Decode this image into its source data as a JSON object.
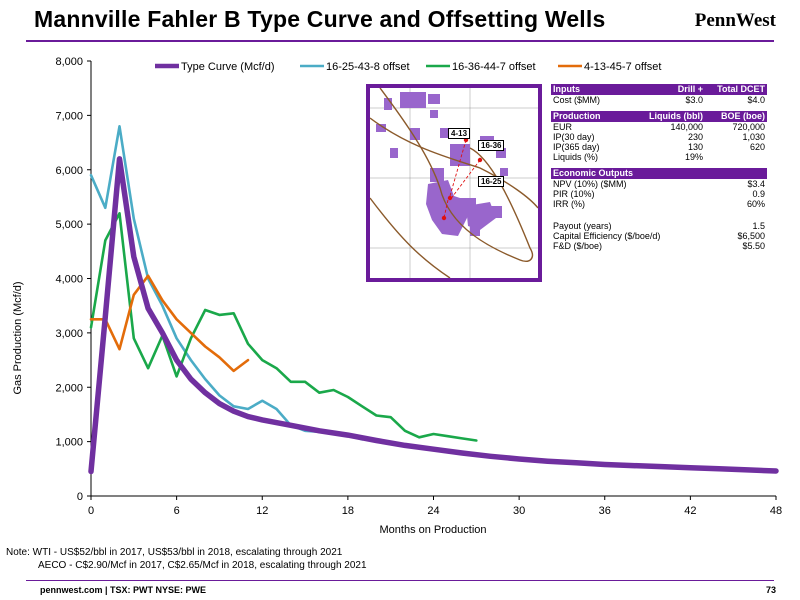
{
  "title": "Mannville Fahler B Type Curve and Offsetting Wells",
  "logo": "PennWest",
  "chart_data": {
    "type": "line",
    "xlabel": "Months on Production",
    "ylabel": "Gas Production (Mcf/d)",
    "xlim": [
      0,
      48
    ],
    "ylim": [
      0,
      8000
    ],
    "x_ticks": [
      0,
      6,
      12,
      18,
      24,
      30,
      36,
      42,
      48
    ],
    "y_ticks": [
      "0",
      "1,000",
      "2,000",
      "3,000",
      "4,000",
      "5,000",
      "6,000",
      "7,000",
      "8,000"
    ],
    "y_tick_values": [
      0,
      1000,
      2000,
      3000,
      4000,
      5000,
      6000,
      7000,
      8000
    ],
    "legend_position": "top",
    "series": [
      {
        "name": "Type Curve (Mcf/d)",
        "color": "#7030a0",
        "x": [
          0,
          1,
          2,
          3,
          4,
          5,
          6,
          7,
          8,
          9,
          10,
          11,
          12,
          14,
          16,
          18,
          20,
          22,
          24,
          26,
          28,
          30,
          32,
          34,
          36,
          38,
          40,
          42,
          44,
          46,
          48
        ],
        "y": [
          450,
          3300,
          6200,
          4400,
          3450,
          3000,
          2500,
          2150,
          1900,
          1700,
          1560,
          1460,
          1400,
          1300,
          1200,
          1120,
          1020,
          930,
          860,
          790,
          730,
          680,
          640,
          610,
          580,
          560,
          540,
          520,
          500,
          480,
          460
        ]
      },
      {
        "name": "16-25-43-8 offset",
        "color": "#4bacc6",
        "x": [
          0,
          1,
          2,
          3,
          4,
          5,
          6,
          7,
          8,
          9,
          10,
          11,
          12,
          13,
          14,
          15,
          16,
          17,
          18,
          19
        ],
        "y": [
          5900,
          5300,
          6800,
          5100,
          4000,
          3500,
          2900,
          2500,
          2150,
          1850,
          1650,
          1600,
          1750,
          1600,
          1300,
          1200,
          1180,
          1150,
          1120,
          1040
        ]
      },
      {
        "name": "16-36-44-7 offset",
        "color": "#1aa84a",
        "x": [
          0,
          1,
          2,
          3,
          4,
          5,
          6,
          7,
          8,
          9,
          10,
          11,
          12,
          13,
          14,
          15,
          16,
          17,
          18,
          19,
          20,
          21,
          22,
          23,
          24,
          25,
          26,
          27
        ],
        "y": [
          3100,
          4700,
          5200,
          2900,
          2350,
          2950,
          2200,
          2900,
          3420,
          3330,
          3360,
          2800,
          2500,
          2350,
          2100,
          2100,
          1900,
          1950,
          1820,
          1650,
          1480,
          1450,
          1200,
          1080,
          1140,
          1100,
          1060,
          1020
        ]
      },
      {
        "name": "4-13-45-7 offset",
        "color": "#e36c0a",
        "x": [
          0,
          1,
          2,
          3,
          4,
          5,
          6,
          7,
          8,
          9,
          10,
          11
        ],
        "y": [
          3250,
          3250,
          2700,
          3700,
          4050,
          3600,
          3250,
          3000,
          2750,
          2550,
          2300,
          2500
        ]
      }
    ]
  },
  "inset_map": {
    "labels": [
      "4-13",
      "16-36",
      "16-25"
    ]
  },
  "table": {
    "inputs": {
      "header": [
        "Inputs",
        "Drill + Complete",
        "Total DCET"
      ],
      "rows": [
        [
          "Cost ($MM)",
          "$3.0",
          "$4.0"
        ]
      ]
    },
    "production": {
      "header": [
        "Production",
        "Liquids (bbl)",
        "BOE (boe)"
      ],
      "rows": [
        [
          "EUR",
          "140,000",
          "720,000"
        ],
        [
          "IP(30 day)",
          "230",
          "1,030"
        ],
        [
          "IP(365 day)",
          "130",
          "620"
        ],
        [
          "Liquids (%)",
          "19%",
          ""
        ]
      ]
    },
    "economic": {
      "header": "Economic Outputs",
      "rows": [
        [
          "NPV (10%) ($MM)",
          "$3.4"
        ],
        [
          "PIR (10%)",
          "0.9"
        ],
        [
          "IRR (%)",
          "60%"
        ]
      ],
      "rows2": [
        [
          "Payout (years)",
          "1.5"
        ],
        [
          "Capital Efficiency ($/boe/d)",
          "$6,500"
        ],
        [
          "F&D ($/boe)",
          "$5.50"
        ]
      ]
    }
  },
  "note": {
    "line1": "Note: WTI - US$52/bbl in 2017, US$53/bbl in 2018, escalating through 2021",
    "line2": "AECO - C$2.90/Mcf in 2017, C$2.65/Mcf in 2018, escalating through 2021"
  },
  "footer": {
    "left": "pennwest.com | TSX: PWT NYSE: PWE",
    "page": "73"
  }
}
